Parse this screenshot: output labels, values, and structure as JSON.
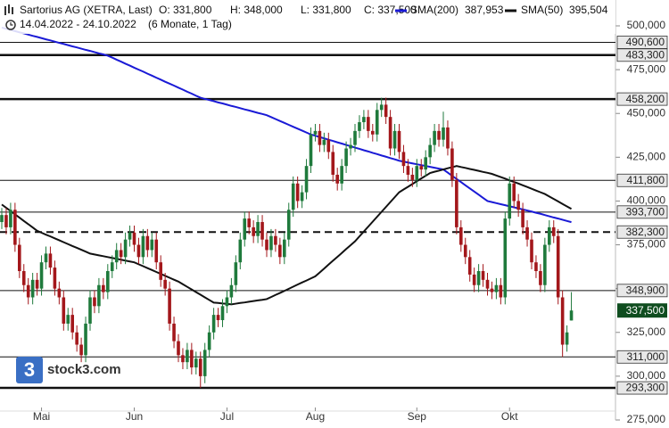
{
  "header": {
    "title": "Sartorius AG (XETRA, Last)",
    "open": "O: 331,800",
    "high": "H: 348,000",
    "low": "L: 331,800",
    "close": "C: 337,500",
    "period": "14.04.2022 - 24.10.2022",
    "interval": "(6 Monate, 1 Tag)"
  },
  "logo": {
    "icon": "3",
    "text": "stock3.com"
  },
  "chart_data": {
    "type": "candlestick",
    "up_color": "#1f7a3c",
    "down_color": "#a3171b",
    "categories": [
      null,
      null,
      null,
      null,
      null,
      null,
      null,
      null,
      null,
      "Mai",
      null,
      null,
      null,
      null,
      null,
      null,
      null,
      null,
      null,
      null,
      null,
      null,
      null,
      null,
      null,
      null,
      null,
      null,
      null,
      null,
      "Jun",
      null,
      null,
      null,
      null,
      null,
      null,
      null,
      null,
      null,
      null,
      null,
      null,
      null,
      null,
      null,
      null,
      null,
      null,
      null,
      null,
      "Jul",
      null,
      null,
      null,
      null,
      null,
      null,
      null,
      null,
      null,
      null,
      null,
      null,
      null,
      null,
      null,
      null,
      null,
      null,
      null,
      "Aug",
      null,
      null,
      null,
      null,
      null,
      null,
      null,
      null,
      null,
      null,
      null,
      null,
      null,
      null,
      null,
      null,
      null,
      null,
      null,
      null,
      null,
      null,
      "Sep",
      null,
      null,
      null,
      null,
      null,
      null,
      null,
      null,
      null,
      null,
      null,
      null,
      null,
      null,
      null,
      null,
      null,
      null,
      null,
      null,
      "Okt",
      null,
      null,
      null,
      null,
      null,
      null,
      null,
      null,
      null,
      null,
      null,
      null,
      null,
      null
    ],
    "open": [
      388000,
      392000,
      385000,
      395000,
      375000,
      360000,
      352000,
      345000,
      355000,
      350000,
      365000,
      370000,
      362000,
      350000,
      345000,
      330000,
      335000,
      325000,
      318000,
      312000,
      330000,
      345000,
      340000,
      352000,
      348000,
      360000,
      365000,
      372000,
      368000,
      378000,
      382000,
      375000,
      368000,
      380000,
      372000,
      378000,
      365000,
      355000,
      350000,
      330000,
      320000,
      312000,
      308000,
      315000,
      305000,
      310000,
      300000,
      315000,
      325000,
      335000,
      332000,
      340000,
      345000,
      352000,
      365000,
      378000,
      390000,
      385000,
      380000,
      388000,
      378000,
      372000,
      380000,
      375000,
      368000,
      378000,
      395000,
      410000,
      400000,
      405000,
      420000,
      438000,
      440000,
      432000,
      435000,
      428000,
      415000,
      410000,
      420000,
      430000,
      432000,
      440000,
      445000,
      448000,
      440000,
      438000,
      452000,
      455000,
      448000,
      430000,
      440000,
      428000,
      420000,
      415000,
      412000,
      420000,
      418000,
      425000,
      432000,
      440000,
      435000,
      442000,
      430000,
      412000,
      385000,
      375000,
      368000,
      358000,
      352000,
      360000,
      355000,
      350000,
      348000,
      352000,
      345000,
      390000,
      410000,
      400000,
      395000,
      385000,
      378000,
      365000,
      360000,
      352000,
      375000,
      385000,
      380000,
      345000,
      318000,
      331800
    ],
    "high": [
      396000,
      396000,
      399000,
      399000,
      379000,
      364000,
      356000,
      359000,
      359000,
      369000,
      374000,
      374000,
      366000,
      354000,
      349000,
      339000,
      339000,
      329000,
      322000,
      334000,
      349000,
      349000,
      356000,
      356000,
      364000,
      369000,
      376000,
      376000,
      382000,
      386000,
      386000,
      379000,
      384000,
      384000,
      382000,
      382000,
      369000,
      359000,
      354000,
      334000,
      324000,
      316000,
      319000,
      319000,
      314000,
      314000,
      319000,
      329000,
      339000,
      339000,
      344000,
      349000,
      356000,
      369000,
      382000,
      394000,
      394000,
      389000,
      392000,
      392000,
      382000,
      384000,
      384000,
      379000,
      382000,
      399000,
      414000,
      414000,
      409000,
      424000,
      442000,
      444000,
      444000,
      439000,
      439000,
      432000,
      419000,
      424000,
      434000,
      436000,
      444000,
      449000,
      452000,
      452000,
      444000,
      456000,
      459000,
      459000,
      452000,
      444000,
      444000,
      432000,
      424000,
      419000,
      424000,
      424000,
      429000,
      436000,
      444000,
      444000,
      451000,
      446000,
      434000,
      416000,
      389000,
      379000,
      372000,
      362000,
      364000,
      364000,
      359000,
      354000,
      356000,
      356000,
      394000,
      414000,
      414000,
      404000,
      399000,
      389000,
      382000,
      369000,
      364000,
      379000,
      389000,
      389000,
      384000,
      349000,
      329000,
      348000
    ],
    "low": [
      384000,
      381000,
      381000,
      371000,
      356000,
      348000,
      341000,
      341000,
      346000,
      346000,
      361000,
      358000,
      346000,
      341000,
      326000,
      326000,
      321000,
      314000,
      308000,
      308000,
      326000,
      336000,
      336000,
      344000,
      344000,
      356000,
      361000,
      364000,
      364000,
      374000,
      371000,
      364000,
      364000,
      368000,
      368000,
      361000,
      351000,
      346000,
      326000,
      316000,
      308000,
      304000,
      304000,
      301000,
      301000,
      293300,
      296000,
      311000,
      321000,
      328000,
      328000,
      336000,
      341000,
      348000,
      361000,
      374000,
      381000,
      376000,
      376000,
      374000,
      368000,
      368000,
      371000,
      364000,
      364000,
      374000,
      391000,
      396000,
      396000,
      401000,
      416000,
      434000,
      428000,
      428000,
      424000,
      411000,
      406000,
      406000,
      416000,
      426000,
      428000,
      436000,
      441000,
      436000,
      434000,
      434000,
      448000,
      444000,
      426000,
      426000,
      424000,
      416000,
      411000,
      408000,
      408000,
      414000,
      414000,
      421000,
      428000,
      431000,
      431000,
      426000,
      408000,
      381000,
      371000,
      364000,
      354000,
      348000,
      348000,
      351000,
      346000,
      344000,
      344000,
      341000,
      341000,
      386000,
      396000,
      391000,
      381000,
      374000,
      361000,
      356000,
      348000,
      348000,
      371000,
      376000,
      341000,
      311000,
      314000,
      331800
    ],
    "close": [
      392000,
      385000,
      395000,
      375000,
      360000,
      352000,
      345000,
      355000,
      350000,
      365000,
      370000,
      362000,
      350000,
      345000,
      330000,
      335000,
      325000,
      318000,
      312000,
      330000,
      345000,
      340000,
      352000,
      348000,
      360000,
      365000,
      372000,
      368000,
      378000,
      382000,
      375000,
      368000,
      380000,
      372000,
      378000,
      365000,
      355000,
      350000,
      330000,
      320000,
      312000,
      308000,
      315000,
      305000,
      310000,
      300000,
      315000,
      325000,
      335000,
      332000,
      340000,
      345000,
      352000,
      365000,
      378000,
      390000,
      385000,
      380000,
      388000,
      378000,
      372000,
      380000,
      375000,
      368000,
      378000,
      395000,
      410000,
      400000,
      405000,
      420000,
      438000,
      440000,
      432000,
      435000,
      428000,
      415000,
      410000,
      420000,
      430000,
      432000,
      440000,
      445000,
      448000,
      440000,
      438000,
      452000,
      455000,
      448000,
      430000,
      440000,
      428000,
      420000,
      415000,
      412000,
      420000,
      418000,
      425000,
      432000,
      440000,
      435000,
      442000,
      430000,
      412000,
      385000,
      375000,
      368000,
      358000,
      352000,
      360000,
      355000,
      350000,
      348000,
      352000,
      345000,
      390000,
      410000,
      400000,
      395000,
      385000,
      378000,
      365000,
      360000,
      352000,
      375000,
      385000,
      380000,
      345000,
      318000,
      325000,
      337500
    ],
    "series": [
      {
        "name": "SMA(200)",
        "color": "#1a1ad6",
        "last_label": "387,953",
        "values": [
          499000,
          498300,
          497700,
          497000,
          496300,
          495700,
          495000,
          494300,
          493700,
          493000,
          492300,
          491700,
          491000,
          490300,
          489700,
          489000,
          488300,
          487700,
          487000,
          486300,
          485700,
          485000,
          484300,
          483700,
          483000,
          481900,
          480700,
          479600,
          478400,
          477300,
          476100,
          475000,
          473900,
          472700,
          471600,
          470400,
          469300,
          468100,
          467000,
          465900,
          464700,
          463600,
          462400,
          461300,
          460100,
          459000,
          458300,
          457700,
          457000,
          456300,
          455700,
          455000,
          454300,
          453700,
          453000,
          452300,
          451700,
          451000,
          450300,
          449700,
          449000,
          447900,
          446800,
          445700,
          444600,
          443500,
          442400,
          441300,
          440200,
          439100,
          438000,
          437300,
          436500,
          435800,
          435000,
          434300,
          433500,
          432800,
          432000,
          431300,
          430500,
          429800,
          429000,
          428300,
          427500,
          426800,
          426000,
          425300,
          424500,
          423800,
          423000,
          422500,
          422000,
          421500,
          421000,
          420500,
          420000,
          419500,
          419000,
          418500,
          418000,
          416200,
          414400,
          412600,
          410800,
          409000,
          407200,
          405400,
          403600,
          401800,
          400000,
          399400,
          398800,
          398200,
          397600,
          397000,
          396400,
          395800,
          395200,
          394600,
          394000,
          393300,
          392700,
          392000,
          391300,
          390600,
          390000,
          389300,
          388600,
          387953
        ]
      },
      {
        "name": "SMA(50)",
        "color": "#111111",
        "last_label": "395,504",
        "values": [
          398000,
          396100,
          394300,
          392400,
          390500,
          388600,
          386800,
          384900,
          383000,
          381900,
          380800,
          379800,
          378700,
          377600,
          376500,
          375400,
          374300,
          373300,
          372200,
          371100,
          370000,
          369500,
          369000,
          368500,
          368000,
          367500,
          367000,
          366500,
          366000,
          365500,
          365000,
          363900,
          362800,
          361700,
          360600,
          359500,
          358400,
          357300,
          356200,
          355100,
          354000,
          352500,
          351000,
          349500,
          348000,
          346500,
          345000,
          343500,
          342000,
          341800,
          341500,
          341300,
          341000,
          341400,
          341800,
          342100,
          342500,
          342900,
          343300,
          343600,
          344000,
          345200,
          346400,
          347500,
          348700,
          349900,
          351100,
          352300,
          353500,
          354600,
          355800,
          357000,
          359200,
          361400,
          363700,
          365900,
          368100,
          370300,
          372600,
          374800,
          377000,
          379800,
          382600,
          385400,
          388200,
          391000,
          393800,
          396600,
          399400,
          402200,
          405000,
          406600,
          408100,
          409700,
          411300,
          412900,
          414400,
          416000,
          416700,
          417300,
          418000,
          418700,
          419300,
          420000,
          419400,
          418900,
          418300,
          417800,
          417200,
          416600,
          416100,
          415500,
          414600,
          413700,
          412800,
          411800,
          410900,
          410000,
          409000,
          408000,
          407000,
          406000,
          405000,
          404000,
          402600,
          401200,
          399800,
          398300,
          396900,
          395504
        ]
      }
    ],
    "levels": [
      {
        "value": 490600,
        "label": "490,600",
        "style": "thin"
      },
      {
        "value": 483300,
        "label": "483,300",
        "style": "thick"
      },
      {
        "value": 458200,
        "label": "458,200",
        "style": "thick"
      },
      {
        "value": 411800,
        "label": "411,800",
        "style": "thin"
      },
      {
        "value": 393700,
        "label": "393,700",
        "style": "thin"
      },
      {
        "value": 382300,
        "label": "382,300",
        "style": "dashed"
      },
      {
        "value": 348900,
        "label": "348,900",
        "style": "thin"
      },
      {
        "value": 311000,
        "label": "311,000",
        "style": "thin"
      },
      {
        "value": 293300,
        "label": "293,300",
        "style": "thick"
      }
    ],
    "last_price": {
      "value": 337500,
      "label": "337,500",
      "color": "#0f4d1f"
    },
    "ylim": [
      275000,
      500000
    ],
    "yticks": [
      {
        "value": 275000,
        "label": "275,000"
      },
      {
        "value": 300000,
        "label": "300,000"
      },
      {
        "value": 325000,
        "label": "325,000"
      },
      {
        "value": 350000,
        "label": "350,000"
      },
      {
        "value": 375000,
        "label": "375,000"
      },
      {
        "value": 400000,
        "label": "400,000"
      },
      {
        "value": 425000,
        "label": "425,000"
      },
      {
        "value": 450000,
        "label": "450,000"
      },
      {
        "value": 475000,
        "label": "475,000"
      },
      {
        "value": 500000,
        "label": "500,000"
      }
    ]
  }
}
